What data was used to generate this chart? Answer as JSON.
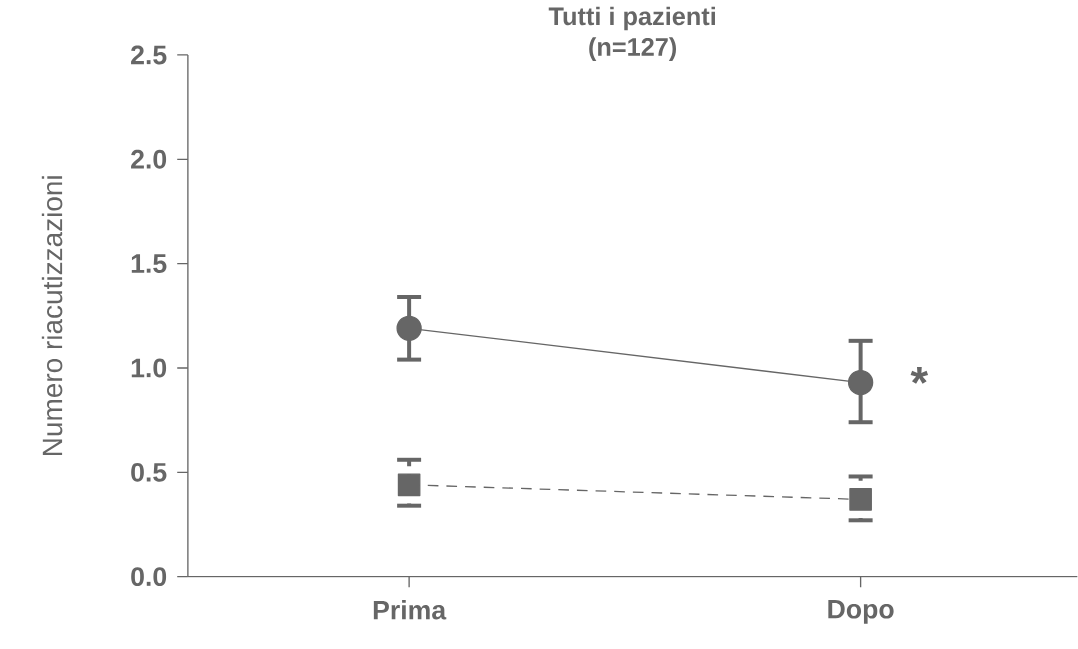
{
  "chart_data": {
    "type": "line",
    "title": "Tutti i pazienti",
    "subtitle": "(n=127)",
    "ylabel": "Numero riacutizzazioni",
    "categories": [
      "Prima",
      "Dopo"
    ],
    "ylim": [
      0,
      2.5
    ],
    "yticks": [
      {
        "value": 0,
        "label": "0.0"
      },
      {
        "value": 0.5,
        "label": "0.5"
      },
      {
        "value": 1,
        "label": "1.0"
      },
      {
        "value": 1.5,
        "label": "1.5"
      },
      {
        "value": 2,
        "label": "2.0"
      },
      {
        "value": 2.5,
        "label": "2.5"
      }
    ],
    "series": [
      {
        "color": "#666666",
        "values": [
          1.19,
          0.93
        ],
        "errors": [
          [
            1.04,
            1.34
          ],
          [
            0.74,
            1.13
          ]
        ],
        "marker": "circle",
        "line_style": "solid"
      },
      {
        "color": "#666666",
        "values": [
          0.44,
          0.37
        ],
        "errors": [
          [
            0.34,
            0.56
          ],
          [
            0.27,
            0.48
          ]
        ],
        "marker": "square",
        "line_style": "dashed"
      }
    ],
    "annotations": [
      {
        "text": "*",
        "x": "Dopo",
        "y": 0.93
      }
    ],
    "grid": false
  }
}
